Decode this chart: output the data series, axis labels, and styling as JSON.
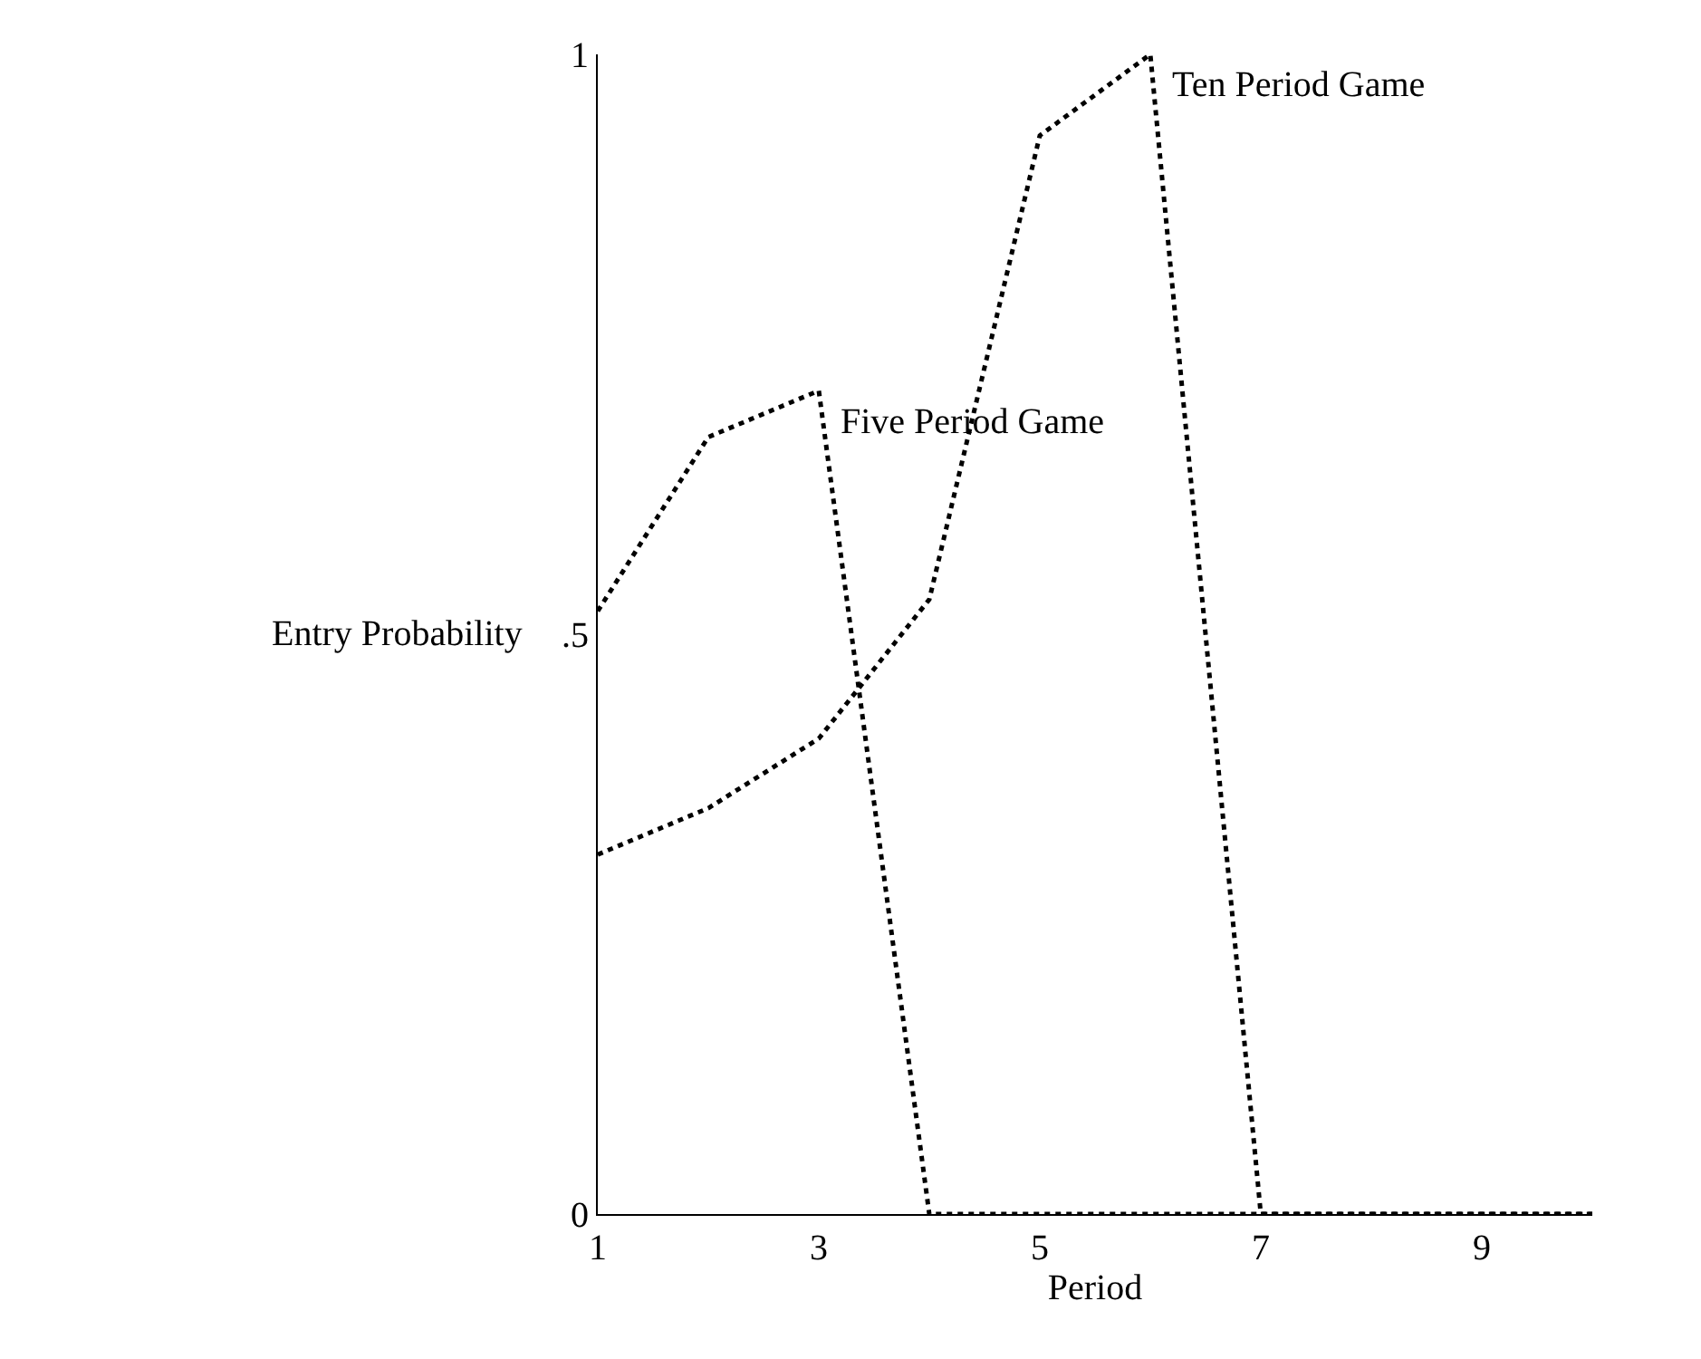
{
  "chart_data": {
    "type": "line",
    "xlabel": "Period",
    "ylabel": "Entry Probability",
    "x": [
      1,
      2,
      3,
      4,
      5,
      6,
      7,
      8,
      9,
      10
    ],
    "series": [
      {
        "color": "#000000",
        "values": [
          0.52,
          0.67,
          0.71,
          0,
          0,
          0,
          0,
          0,
          0,
          0
        ]
      },
      {
        "color": "#000000",
        "values": [
          0.31,
          0.35,
          0.41,
          0.53,
          0.93,
          1.0,
          0,
          0,
          0,
          0
        ]
      }
    ],
    "annotations": [
      {
        "text": "Five Period Game",
        "x": 3,
        "y": 0.71
      },
      {
        "text": "Ten Period Game",
        "x": 6,
        "y": 1.0
      }
    ],
    "xlim": [
      1,
      10
    ],
    "xticks": [
      1,
      3,
      5,
      7,
      9
    ],
    "ylim": [
      0,
      1
    ],
    "yticks": [
      0,
      {
        "value": 0.5,
        "label": ".5"
      },
      1
    ],
    "line_style": "dotted",
    "marker": "none"
  }
}
